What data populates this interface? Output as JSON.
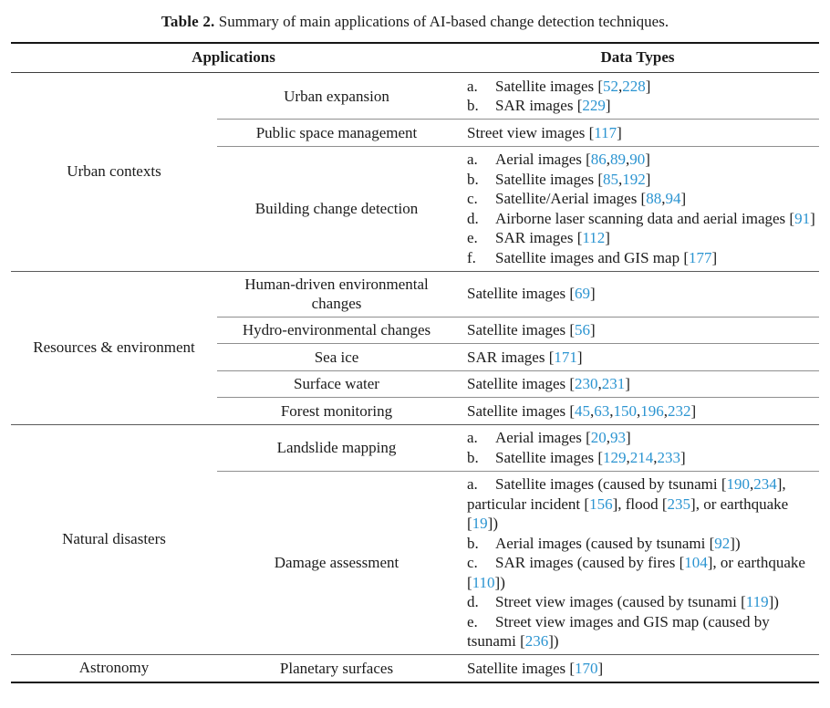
{
  "caption": {
    "label": "Table 2.",
    "text": "Summary of main applications of AI-based change detection techniques."
  },
  "headers": {
    "applications": "Applications",
    "data_types": "Data Types"
  },
  "colors": {
    "citation": "#2b94d1"
  },
  "sections": [
    {
      "category": "Urban contexts",
      "rows": [
        {
          "application": "Urban expansion",
          "entries": [
            {
              "marker": "a.",
              "segments": [
                {
                  "t": "Satellite images ["
                },
                {
                  "c": "52"
                },
                {
                  "t": ","
                },
                {
                  "c": "228"
                },
                {
                  "t": "]"
                }
              ]
            },
            {
              "marker": "b.",
              "segments": [
                {
                  "t": "SAR images ["
                },
                {
                  "c": "229"
                },
                {
                  "t": "]"
                }
              ]
            }
          ]
        },
        {
          "application": "Public space management",
          "entries": [
            {
              "segments": [
                {
                  "t": "Street view images ["
                },
                {
                  "c": "117"
                },
                {
                  "t": "]"
                }
              ]
            }
          ]
        },
        {
          "application": "Building change detection",
          "entries": [
            {
              "marker": "a.",
              "segments": [
                {
                  "t": "Aerial images ["
                },
                {
                  "c": "86"
                },
                {
                  "t": ","
                },
                {
                  "c": "89"
                },
                {
                  "t": ","
                },
                {
                  "c": "90"
                },
                {
                  "t": "]"
                }
              ]
            },
            {
              "marker": "b.",
              "segments": [
                {
                  "t": "Satellite images ["
                },
                {
                  "c": "85"
                },
                {
                  "t": ","
                },
                {
                  "c": "192"
                },
                {
                  "t": "]"
                }
              ]
            },
            {
              "marker": "c.",
              "segments": [
                {
                  "t": "Satellite/Aerial images ["
                },
                {
                  "c": "88"
                },
                {
                  "t": ","
                },
                {
                  "c": "94"
                },
                {
                  "t": "]"
                }
              ]
            },
            {
              "marker": "d.",
              "segments": [
                {
                  "t": "Airborne laser scanning data and aerial images ["
                },
                {
                  "c": "91"
                },
                {
                  "t": "]"
                }
              ]
            },
            {
              "marker": "e.",
              "segments": [
                {
                  "t": "SAR images ["
                },
                {
                  "c": "112"
                },
                {
                  "t": "]"
                }
              ]
            },
            {
              "marker": "f.",
              "segments": [
                {
                  "t": "Satellite images and GIS map ["
                },
                {
                  "c": "177"
                },
                {
                  "t": "]"
                }
              ]
            }
          ]
        }
      ]
    },
    {
      "category": "Resources & environment",
      "rows": [
        {
          "application": "Human-driven environmental changes",
          "entries": [
            {
              "segments": [
                {
                  "t": "Satellite images ["
                },
                {
                  "c": "69"
                },
                {
                  "t": "]"
                }
              ]
            }
          ]
        },
        {
          "application": "Hydro-environmental changes",
          "entries": [
            {
              "segments": [
                {
                  "t": "Satellite images ["
                },
                {
                  "c": "56"
                },
                {
                  "t": "]"
                }
              ]
            }
          ]
        },
        {
          "application": "Sea ice",
          "entries": [
            {
              "segments": [
                {
                  "t": "SAR images ["
                },
                {
                  "c": "171"
                },
                {
                  "t": "]"
                }
              ]
            }
          ]
        },
        {
          "application": "Surface water",
          "entries": [
            {
              "segments": [
                {
                  "t": "Satellite images ["
                },
                {
                  "c": "230"
                },
                {
                  "t": ","
                },
                {
                  "c": "231"
                },
                {
                  "t": "]"
                }
              ]
            }
          ]
        },
        {
          "application": "Forest monitoring",
          "entries": [
            {
              "segments": [
                {
                  "t": "Satellite images ["
                },
                {
                  "c": "45"
                },
                {
                  "t": ","
                },
                {
                  "c": "63"
                },
                {
                  "t": ","
                },
                {
                  "c": "150"
                },
                {
                  "t": ","
                },
                {
                  "c": "196"
                },
                {
                  "t": ","
                },
                {
                  "c": "232"
                },
                {
                  "t": "]"
                }
              ]
            }
          ]
        }
      ]
    },
    {
      "category": "Natural disasters",
      "rows": [
        {
          "application": "Landslide mapping",
          "entries": [
            {
              "marker": "a.",
              "segments": [
                {
                  "t": "Aerial images ["
                },
                {
                  "c": "20"
                },
                {
                  "t": ","
                },
                {
                  "c": "93"
                },
                {
                  "t": "]"
                }
              ]
            },
            {
              "marker": "b.",
              "segments": [
                {
                  "t": "Satellite images ["
                },
                {
                  "c": "129"
                },
                {
                  "t": ","
                },
                {
                  "c": "214"
                },
                {
                  "t": ","
                },
                {
                  "c": "233"
                },
                {
                  "t": "]"
                }
              ]
            }
          ]
        },
        {
          "application": "Damage assessment",
          "entries": [
            {
              "marker": "a.",
              "segments": [
                {
                  "t": "Satellite images (caused by tsunami ["
                },
                {
                  "c": "190"
                },
                {
                  "t": ","
                },
                {
                  "c": "234"
                },
                {
                  "t": "], particular incident ["
                },
                {
                  "c": "156"
                },
                {
                  "t": "], flood ["
                },
                {
                  "c": "235"
                },
                {
                  "t": "], or earthquake ["
                },
                {
                  "c": "19"
                },
                {
                  "t": "])"
                }
              ]
            },
            {
              "marker": "b.",
              "segments": [
                {
                  "t": "Aerial images (caused by tsunami ["
                },
                {
                  "c": "92"
                },
                {
                  "t": "])"
                }
              ]
            },
            {
              "marker": "c.",
              "segments": [
                {
                  "t": "SAR images (caused by fires ["
                },
                {
                  "c": "104"
                },
                {
                  "t": "], or earthquake ["
                },
                {
                  "c": "110"
                },
                {
                  "t": "])"
                }
              ]
            },
            {
              "marker": "d.",
              "segments": [
                {
                  "t": "Street view images (caused by tsunami ["
                },
                {
                  "c": "119"
                },
                {
                  "t": "])"
                }
              ]
            },
            {
              "marker": "e.",
              "segments": [
                {
                  "t": "Street view images and GIS map (caused by tsunami ["
                },
                {
                  "c": "236"
                },
                {
                  "t": "])"
                }
              ]
            }
          ]
        }
      ]
    },
    {
      "category": "Astronomy",
      "rows": [
        {
          "application": "Planetary surfaces",
          "entries": [
            {
              "segments": [
                {
                  "t": "Satellite images ["
                },
                {
                  "c": "170"
                },
                {
                  "t": "]"
                }
              ]
            }
          ]
        }
      ]
    }
  ]
}
